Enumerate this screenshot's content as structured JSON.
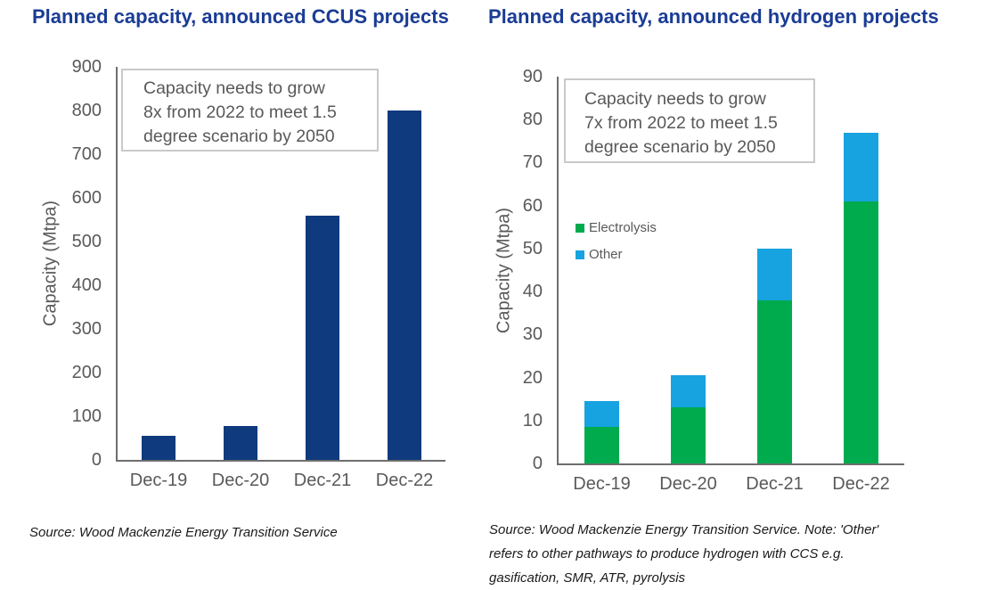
{
  "chart_data": [
    {
      "type": "bar",
      "title": "Planned capacity, announced CCUS projects",
      "categories": [
        "Dec-19",
        "Dec-20",
        "Dec-21",
        "Dec-22"
      ],
      "values": [
        55,
        78,
        560,
        800
      ],
      "series_name": "CCUS",
      "xlabel": "",
      "ylabel": "Capacity (Mtpa)",
      "ylim": [
        0,
        900
      ],
      "ytick_step": 100,
      "grid": false,
      "bar_color": "#0f3a7d",
      "annotation": "Capacity needs to grow\n8x from 2022 to meet 1.5\ndegree scenario by 2050",
      "source": "Source: Wood Mackenzie Energy Transition Service"
    },
    {
      "type": "bar",
      "stacked": true,
      "title": "Planned capacity, announced hydrogen projects",
      "categories": [
        "Dec-19",
        "Dec-20",
        "Dec-21",
        "Dec-22"
      ],
      "series": [
        {
          "name": "Electrolysis",
          "color": "#00ab4e",
          "values": [
            8.5,
            13,
            38,
            61
          ]
        },
        {
          "name": "Other",
          "color": "#16a3e0",
          "values": [
            6,
            7.5,
            12,
            16
          ]
        }
      ],
      "totals": [
        14.5,
        20.5,
        50,
        77
      ],
      "xlabel": "",
      "ylabel": "Capacity (Mtpa)",
      "ylim": [
        0,
        90
      ],
      "ytick_step": 10,
      "grid": false,
      "legend_position": "left-middle",
      "annotation": "Capacity needs to grow\n7x from 2022 to meet 1.5\ndegree scenario by 2050",
      "source": "Source: Wood Mackenzie Energy Transition Service. Note: 'Other'\nrefers to other pathways to produce hydrogen with CCS e.g.\ngasification, SMR, ATR, pyrolysis"
    }
  ],
  "colors": {
    "title_blue": "#1a3c94",
    "ccus_bar_navy": "#0f3a7d",
    "electrolysis_green": "#00ab4e",
    "other_blue": "#16a3e0",
    "axis_text_gray": "#595959",
    "axis_line_gray": "#6e6e6e"
  }
}
